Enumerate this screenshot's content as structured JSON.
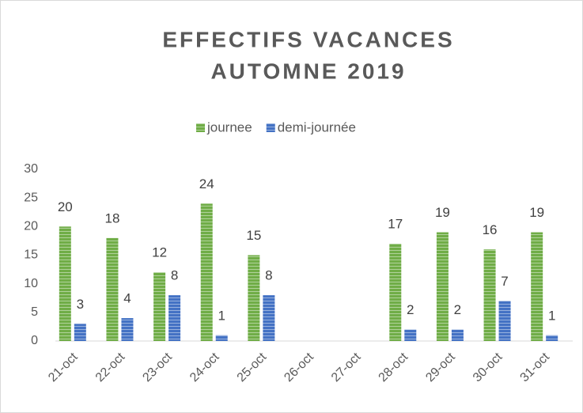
{
  "chart_data": {
    "type": "bar",
    "title": [
      "EFFECTIFS VACANCES",
      "AUTOMNE 2019"
    ],
    "categories": [
      "21-oct",
      "22-oct",
      "23-oct",
      "24-oct",
      "25-oct",
      "26-oct",
      "27-oct",
      "28-oct",
      "29-oct",
      "30-oct",
      "31-oct"
    ],
    "series": [
      {
        "name": "journee",
        "color": "#70ad47",
        "values": [
          20,
          18,
          12,
          24,
          15,
          null,
          null,
          17,
          19,
          16,
          19
        ]
      },
      {
        "name": "demi-journée",
        "color": "#4472c4",
        "values": [
          3,
          4,
          8,
          1,
          8,
          null,
          null,
          2,
          2,
          7,
          1
        ]
      }
    ],
    "ylim": [
      0,
      30
    ],
    "yticks": [
      0,
      5,
      10,
      15,
      20,
      25,
      30
    ],
    "grid": false,
    "legend": "top"
  }
}
